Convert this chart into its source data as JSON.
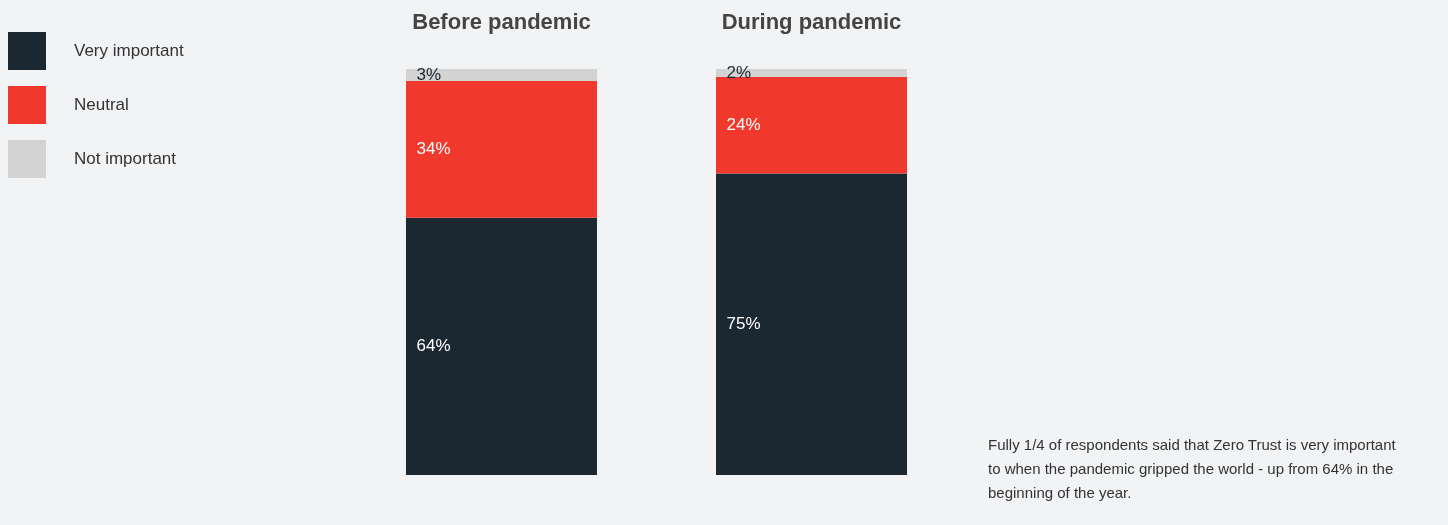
{
  "chart_data": {
    "type": "bar",
    "stacked": true,
    "data_labels": false,
    "legend": "top left",
    "categories": [
      "Before pandemic",
      "During pandemic"
    ],
    "series": [
      {
        "name": "Very important",
        "color": "#1b2731",
        "values": [
          64,
          75
        ],
        "value_labels": [
          "64%",
          "75%"
        ]
      },
      {
        "name": "Neutral",
        "color": "#f0392c",
        "values": [
          34,
          24
        ],
        "value_labels": [
          "34%",
          "24%"
        ]
      },
      {
        "name": "Not important",
        "color": "#d3d3d3",
        "values": [
          3,
          2
        ],
        "value_labels": [
          "3%",
          "2%"
        ]
      }
    ],
    "annotations": [
      "Fully 1/4 of respondents said that Zero Trust is very important to when the pandemic gripped the world - up from 64% in the beginning of the year."
    ]
  }
}
